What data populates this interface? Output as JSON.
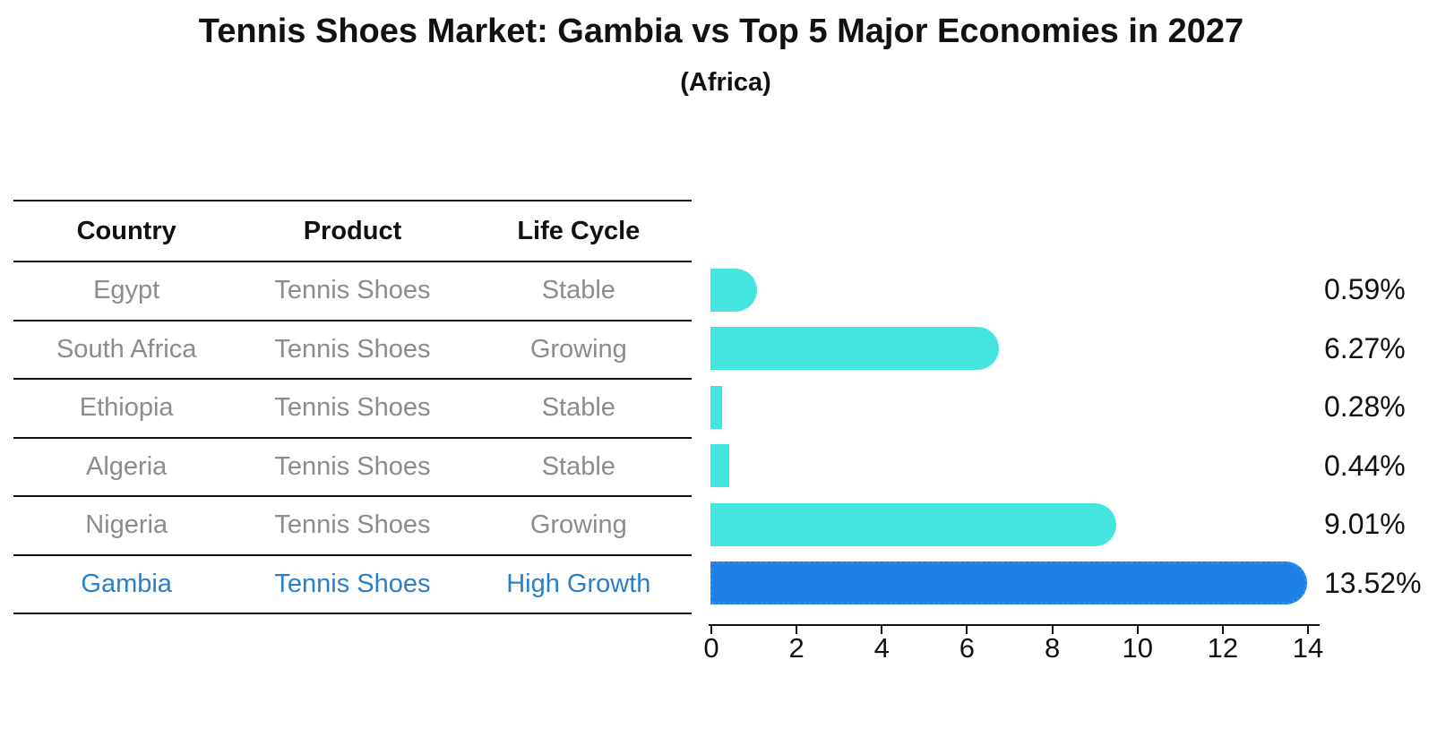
{
  "chart_data": {
    "type": "bar",
    "orientation": "horizontal",
    "title": "Tennis Shoes Market: Gambia vs Top 5 Major Economies in 2027",
    "subtitle": "(Africa)",
    "categories": [
      "Egypt",
      "South Africa",
      "Ethiopia",
      "Algeria",
      "Nigeria",
      "Gambia"
    ],
    "values": [
      0.59,
      6.27,
      0.28,
      0.44,
      9.01,
      13.52
    ],
    "value_labels": [
      "0.59%",
      "6.27%",
      "0.28%",
      "0.44%",
      "9.01%",
      "13.52%"
    ],
    "xlim": [
      0,
      14
    ],
    "x_ticks": [
      "0",
      "2",
      "4",
      "6",
      "8",
      "10",
      "12",
      "14"
    ],
    "grid": false,
    "legend": "none",
    "bar_colors": [
      "#45E5DF",
      "#45E5DF",
      "#45E5DF",
      "#45E5DF",
      "#45E5DF",
      "#1E80E6"
    ],
    "highlight_index": 5
  },
  "table": {
    "headers": [
      "Country",
      "Product",
      "Life Cycle"
    ],
    "rows": [
      {
        "country": "Egypt",
        "product": "Tennis Shoes",
        "life_cycle": "Stable",
        "highlighted": false
      },
      {
        "country": "South Africa",
        "product": "Tennis Shoes",
        "life_cycle": "Growing",
        "highlighted": false
      },
      {
        "country": "Ethiopia",
        "product": "Tennis Shoes",
        "life_cycle": "Stable",
        "highlighted": false
      },
      {
        "country": "Algeria",
        "product": "Tennis Shoes",
        "life_cycle": "Stable",
        "highlighted": false
      },
      {
        "country": "Nigeria",
        "product": "Tennis Shoes",
        "life_cycle": "Growing",
        "highlighted": false
      },
      {
        "country": "Gambia",
        "product": "Tennis Shoes",
        "life_cycle": "High Growth",
        "highlighted": true
      }
    ]
  },
  "colors": {
    "bar_cyan": "#45E5DF",
    "bar_blue": "#1E80E6",
    "highlight_text": "#2980C8",
    "cell_text": "#8C8C8C",
    "axis": "#111111"
  }
}
